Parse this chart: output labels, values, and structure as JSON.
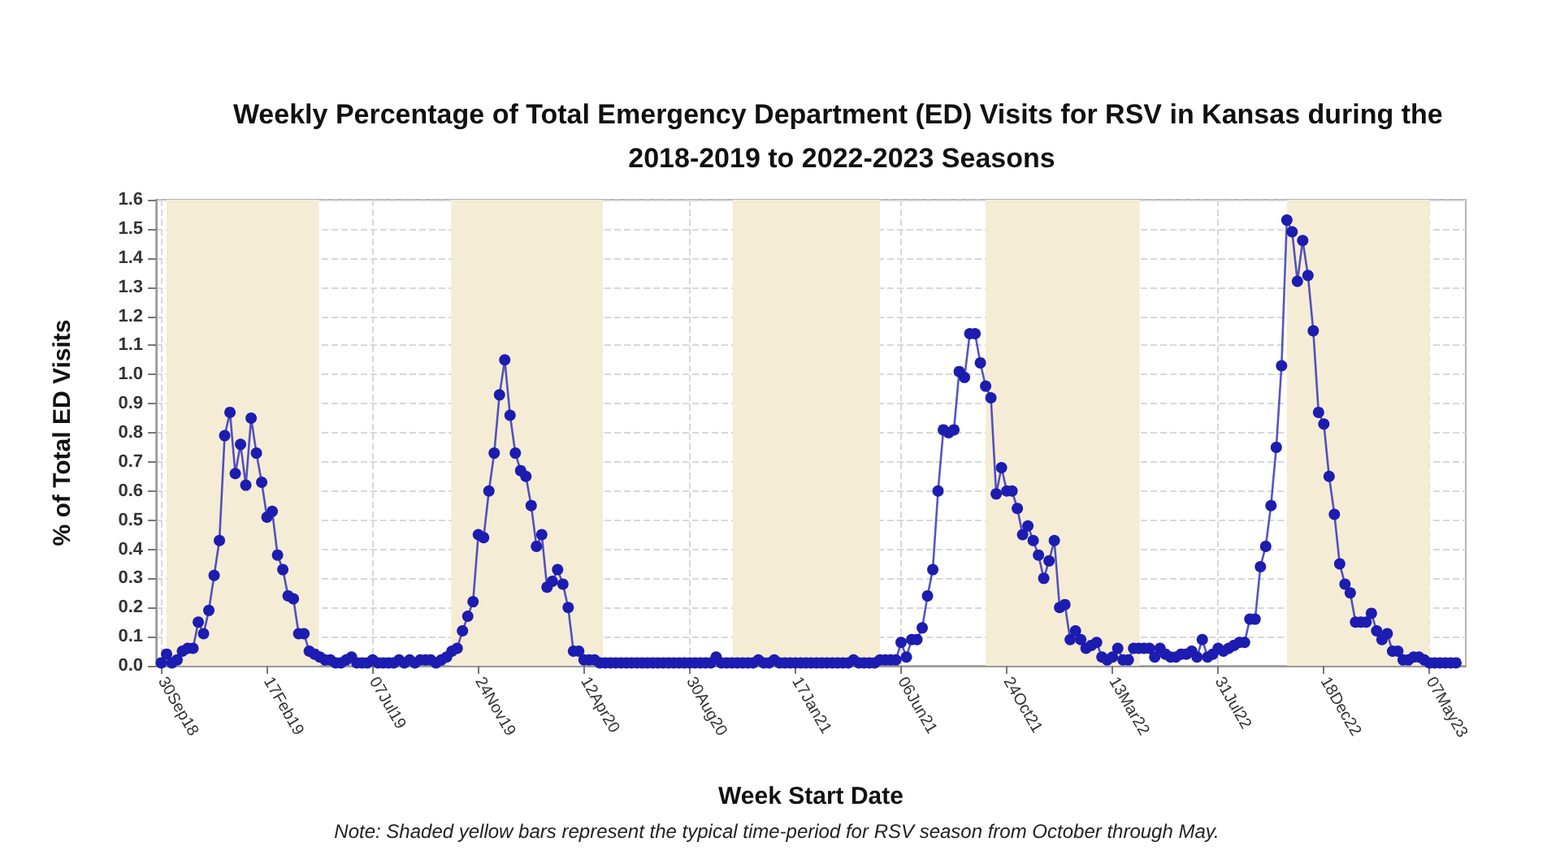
{
  "chart_data": {
    "type": "line",
    "title": "Weekly Percentage of Total Emergency Department (ED) Visits for RSV in Kansas during the 2018-2019 to 2022-2023 Seasons",
    "xlabel": "Week Start Date",
    "ylabel": "% of Total ED Visits",
    "annotations": [
      "Note: Shaded yellow bars represent the typical time-period for RSV season from October through May."
    ],
    "color": "#1c1cb0",
    "marker": "circle",
    "grid": true,
    "line_style": "solid",
    "xlim": [
      "2018-09-23",
      "2023-06-24"
    ],
    "xticks": [
      {
        "value": "2018-09-30",
        "label": "30Sep18"
      },
      {
        "value": "2019-02-17",
        "label": "17Feb19"
      },
      {
        "value": "2019-07-07",
        "label": "07Jul19"
      },
      {
        "value": "2019-11-24",
        "label": "24Nov19"
      },
      {
        "value": "2020-04-12",
        "label": "12Apr20"
      },
      {
        "value": "2020-08-30",
        "label": "30Aug20"
      },
      {
        "value": "2021-01-17",
        "label": "17Jan21"
      },
      {
        "value": "2021-06-06",
        "label": "06Jun21"
      },
      {
        "value": "2021-10-24",
        "label": "24Oct21"
      },
      {
        "value": "2022-03-13",
        "label": "13Mar22"
      },
      {
        "value": "2022-07-31",
        "label": "31Jul22"
      },
      {
        "value": "2022-12-18",
        "label": "18Dec22"
      },
      {
        "value": "2023-05-07",
        "label": "07May23"
      }
    ],
    "ylim": [
      0,
      1.6
    ],
    "yticks": [
      {
        "value": 0,
        "label": "0.0"
      },
      {
        "value": 0.1,
        "label": "0.1"
      },
      {
        "value": 0.2,
        "label": "0.2"
      },
      {
        "value": 0.3,
        "label": "0.3"
      },
      {
        "value": 0.4,
        "label": "0.4"
      },
      {
        "value": 0.5,
        "label": "0.5"
      },
      {
        "value": 0.6,
        "label": "0.6"
      },
      {
        "value": 0.7,
        "label": "0.7"
      },
      {
        "value": 0.8,
        "label": "0.8"
      },
      {
        "value": 0.9,
        "label": "0.9"
      },
      {
        "value": 1.0,
        "label": "1.0"
      },
      {
        "value": 1.1,
        "label": "1.1"
      },
      {
        "value": 1.2,
        "label": "1.2"
      },
      {
        "value": 1.3,
        "label": "1.3"
      },
      {
        "value": 1.4,
        "label": "1.4"
      },
      {
        "value": 1.5,
        "label": "1.5"
      },
      {
        "value": 1.6,
        "label": "1.6"
      }
    ],
    "bands": [
      {
        "axis": "x",
        "from": "2018-10-07",
        "to": "2019-04-27",
        "color": "#f5ecd6"
      },
      {
        "axis": "x",
        "from": "2019-10-19",
        "to": "2020-05-07",
        "color": "#f5ecd6"
      },
      {
        "axis": "x",
        "from": "2020-10-26",
        "to": "2021-05-09",
        "color": "#f5ecd6"
      },
      {
        "axis": "x",
        "from": "2021-09-26",
        "to": "2022-04-18",
        "color": "#f5ecd6"
      },
      {
        "axis": "x",
        "from": "2022-10-30",
        "to": "2023-05-07",
        "color": "#f5ecd6"
      }
    ],
    "x": [
      "2018-09-30",
      "2018-10-07",
      "2018-10-14",
      "2018-10-21",
      "2018-10-28",
      "2018-11-04",
      "2018-11-11",
      "2018-11-18",
      "2018-11-25",
      "2018-12-02",
      "2018-12-09",
      "2018-12-16",
      "2018-12-23",
      "2018-12-30",
      "2019-01-06",
      "2019-01-13",
      "2019-01-20",
      "2019-01-27",
      "2019-02-03",
      "2019-02-10",
      "2019-02-17",
      "2019-02-24",
      "2019-03-03",
      "2019-03-10",
      "2019-03-17",
      "2019-03-24",
      "2019-03-31",
      "2019-04-07",
      "2019-04-14",
      "2019-04-21",
      "2019-04-28",
      "2019-05-05",
      "2019-05-12",
      "2019-05-19",
      "2019-05-26",
      "2019-06-02",
      "2019-06-09",
      "2019-06-16",
      "2019-06-23",
      "2019-06-30",
      "2019-07-07",
      "2019-07-14",
      "2019-07-21",
      "2019-07-28",
      "2019-08-04",
      "2019-08-11",
      "2019-08-18",
      "2019-08-25",
      "2019-09-01",
      "2019-09-08",
      "2019-09-15",
      "2019-09-22",
      "2019-09-29",
      "2019-10-06",
      "2019-10-13",
      "2019-10-20",
      "2019-10-27",
      "2019-11-03",
      "2019-11-10",
      "2019-11-17",
      "2019-11-24",
      "2019-12-01",
      "2019-12-08",
      "2019-12-15",
      "2019-12-22",
      "2019-12-29",
      "2020-01-05",
      "2020-01-12",
      "2020-01-19",
      "2020-01-26",
      "2020-02-02",
      "2020-02-09",
      "2020-02-16",
      "2020-02-23",
      "2020-03-01",
      "2020-03-08",
      "2020-03-15",
      "2020-03-22",
      "2020-03-29",
      "2020-04-05",
      "2020-04-12",
      "2020-04-19",
      "2020-04-26",
      "2020-05-03",
      "2020-05-10",
      "2020-05-17",
      "2020-05-24",
      "2020-05-31",
      "2020-06-07",
      "2020-06-14",
      "2020-06-21",
      "2020-06-28",
      "2020-07-05",
      "2020-07-12",
      "2020-07-19",
      "2020-07-26",
      "2020-08-02",
      "2020-08-09",
      "2020-08-16",
      "2020-08-23",
      "2020-08-30",
      "2020-09-06",
      "2020-09-13",
      "2020-09-20",
      "2020-09-27",
      "2020-10-04",
      "2020-10-11",
      "2020-10-18",
      "2020-10-25",
      "2020-11-01",
      "2020-11-08",
      "2020-11-15",
      "2020-11-22",
      "2020-11-29",
      "2020-12-06",
      "2020-12-13",
      "2020-12-20",
      "2020-12-27",
      "2021-01-03",
      "2021-01-10",
      "2021-01-17",
      "2021-01-24",
      "2021-01-31",
      "2021-02-07",
      "2021-02-14",
      "2021-02-21",
      "2021-02-28",
      "2021-03-07",
      "2021-03-14",
      "2021-03-21",
      "2021-03-28",
      "2021-04-04",
      "2021-04-11",
      "2021-04-18",
      "2021-04-25",
      "2021-05-02",
      "2021-05-09",
      "2021-05-16",
      "2021-05-23",
      "2021-05-30",
      "2021-06-06",
      "2021-06-13",
      "2021-06-20",
      "2021-06-27",
      "2021-07-04",
      "2021-07-11",
      "2021-07-18",
      "2021-07-25",
      "2021-08-01",
      "2021-08-08",
      "2021-08-15",
      "2021-08-22",
      "2021-08-29",
      "2021-09-05",
      "2021-09-12",
      "2021-09-19",
      "2021-09-26",
      "2021-10-03",
      "2021-10-10",
      "2021-10-17",
      "2021-10-24",
      "2021-10-31",
      "2021-11-07",
      "2021-11-14",
      "2021-11-21",
      "2021-11-28",
      "2021-12-05",
      "2021-12-12",
      "2021-12-19",
      "2021-12-26",
      "2022-01-02",
      "2022-01-09",
      "2022-01-16",
      "2022-01-23",
      "2022-01-30",
      "2022-02-06",
      "2022-02-13",
      "2022-02-20",
      "2022-02-27",
      "2022-03-06",
      "2022-03-13",
      "2022-03-20",
      "2022-03-27",
      "2022-04-03",
      "2022-04-10",
      "2022-04-17",
      "2022-04-24",
      "2022-05-01",
      "2022-05-08",
      "2022-05-15",
      "2022-05-22",
      "2022-05-29",
      "2022-06-05",
      "2022-06-12",
      "2022-06-19",
      "2022-06-26",
      "2022-07-03",
      "2022-07-10",
      "2022-07-17",
      "2022-07-24",
      "2022-07-31",
      "2022-08-07",
      "2022-08-14",
      "2022-08-21",
      "2022-08-28",
      "2022-09-04",
      "2022-09-11",
      "2022-09-18",
      "2022-09-25",
      "2022-10-02",
      "2022-10-09",
      "2022-10-16",
      "2022-10-23",
      "2022-10-30",
      "2022-11-06",
      "2022-11-13",
      "2022-11-20",
      "2022-11-27",
      "2022-12-04",
      "2022-12-11",
      "2022-12-18",
      "2022-12-25",
      "2023-01-01",
      "2023-01-08",
      "2023-01-15",
      "2023-01-22",
      "2023-01-29",
      "2023-02-05",
      "2023-02-12",
      "2023-02-19",
      "2023-02-26",
      "2023-03-05",
      "2023-03-12",
      "2023-03-19",
      "2023-03-26",
      "2023-04-02",
      "2023-04-09",
      "2023-04-16",
      "2023-04-23",
      "2023-04-30",
      "2023-05-07",
      "2023-05-14",
      "2023-05-21",
      "2023-05-28",
      "2023-06-04",
      "2023-06-11"
    ],
    "values": [
      0.01,
      0.04,
      0.01,
      0.02,
      0.05,
      0.06,
      0.06,
      0.15,
      0.11,
      0.19,
      0.31,
      0.43,
      0.79,
      0.87,
      0.66,
      0.76,
      0.62,
      0.85,
      0.73,
      0.63,
      0.51,
      0.53,
      0.38,
      0.33,
      0.24,
      0.23,
      0.11,
      0.11,
      0.05,
      0.04,
      0.03,
      0.02,
      0.02,
      0.01,
      0.01,
      0.02,
      0.03,
      0.01,
      0.01,
      0.01,
      0.02,
      0.01,
      0.01,
      0.01,
      0.01,
      0.02,
      0.01,
      0.02,
      0.01,
      0.02,
      0.02,
      0.02,
      0.01,
      0.02,
      0.03,
      0.05,
      0.06,
      0.12,
      0.17,
      0.22,
      0.45,
      0.44,
      0.6,
      0.73,
      0.93,
      1.05,
      0.86,
      0.73,
      0.67,
      0.65,
      0.55,
      0.41,
      0.45,
      0.27,
      0.29,
      0.33,
      0.28,
      0.2,
      0.05,
      0.05,
      0.02,
      0.02,
      0.02,
      0.01,
      0.01,
      0.01,
      0.01,
      0.01,
      0.01,
      0.01,
      0.01,
      0.01,
      0.01,
      0.01,
      0.01,
      0.01,
      0.01,
      0.01,
      0.01,
      0.01,
      0.01,
      0.01,
      0.01,
      0.01,
      0.01,
      0.03,
      0.01,
      0.01,
      0.01,
      0.01,
      0.01,
      0.01,
      0.01,
      0.02,
      0.01,
      0.01,
      0.02,
      0.01,
      0.01,
      0.01,
      0.01,
      0.01,
      0.01,
      0.01,
      0.01,
      0.01,
      0.01,
      0.01,
      0.01,
      0.01,
      0.01,
      0.02,
      0.01,
      0.01,
      0.01,
      0.01,
      0.02,
      0.02,
      0.02,
      0.02,
      0.08,
      0.03,
      0.09,
      0.09,
      0.13,
      0.24,
      0.33,
      0.6,
      0.81,
      0.8,
      0.81,
      1.01,
      0.99,
      1.14,
      1.14,
      1.04,
      0.96,
      0.92,
      0.59,
      0.68,
      0.6,
      0.6,
      0.54,
      0.45,
      0.48,
      0.43,
      0.38,
      0.3,
      0.36,
      0.43,
      0.2,
      0.21,
      0.09,
      0.12,
      0.09,
      0.06,
      0.07,
      0.08,
      0.03,
      0.02,
      0.03,
      0.06,
      0.02,
      0.02,
      0.06,
      0.06,
      0.06,
      0.06,
      0.03,
      0.06,
      0.04,
      0.03,
      0.03,
      0.04,
      0.04,
      0.05,
      0.03,
      0.09,
      0.03,
      0.04,
      0.06,
      0.05,
      0.06,
      0.07,
      0.08,
      0.08,
      0.16,
      0.16,
      0.34,
      0.41,
      0.55,
      0.75,
      1.03,
      1.53,
      1.49,
      1.32,
      1.46,
      1.34,
      1.15,
      0.87,
      0.83,
      0.65,
      0.52,
      0.35,
      0.28,
      0.25,
      0.15,
      0.15,
      0.15,
      0.18,
      0.12,
      0.09,
      0.11,
      0.05,
      0.05,
      0.02,
      0.02,
      0.03,
      0.03,
      0.02,
      0.01,
      0.01,
      0.01,
      0.01,
      0.01,
      0.01
    ]
  }
}
